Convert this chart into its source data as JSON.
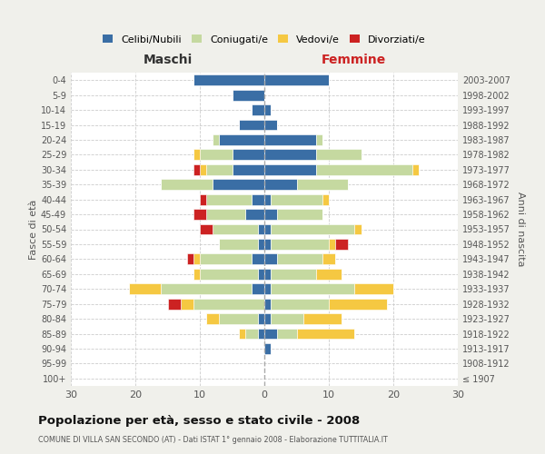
{
  "age_groups": [
    "100+",
    "95-99",
    "90-94",
    "85-89",
    "80-84",
    "75-79",
    "70-74",
    "65-69",
    "60-64",
    "55-59",
    "50-54",
    "45-49",
    "40-44",
    "35-39",
    "30-34",
    "25-29",
    "20-24",
    "15-19",
    "10-14",
    "5-9",
    "0-4"
  ],
  "birth_years": [
    "≤ 1907",
    "1908-1912",
    "1913-1917",
    "1918-1922",
    "1923-1927",
    "1928-1932",
    "1933-1937",
    "1938-1942",
    "1943-1947",
    "1948-1952",
    "1953-1957",
    "1958-1962",
    "1963-1967",
    "1968-1972",
    "1973-1977",
    "1978-1982",
    "1983-1987",
    "1988-1992",
    "1993-1997",
    "1998-2002",
    "2003-2007"
  ],
  "maschi_celibi": [
    0,
    0,
    0,
    1,
    1,
    0,
    2,
    1,
    2,
    1,
    1,
    3,
    2,
    8,
    5,
    5,
    7,
    4,
    2,
    5,
    11
  ],
  "maschi_coniugati": [
    0,
    0,
    0,
    2,
    6,
    11,
    14,
    9,
    8,
    6,
    7,
    6,
    7,
    8,
    4,
    5,
    1,
    0,
    0,
    0,
    0
  ],
  "maschi_vedovi": [
    0,
    0,
    0,
    1,
    2,
    2,
    5,
    1,
    1,
    0,
    0,
    0,
    0,
    0,
    1,
    1,
    0,
    0,
    0,
    0,
    0
  ],
  "maschi_divorziati": [
    0,
    0,
    0,
    0,
    0,
    2,
    0,
    0,
    1,
    0,
    2,
    2,
    1,
    0,
    1,
    0,
    0,
    0,
    0,
    0,
    0
  ],
  "femmine_nubili": [
    0,
    0,
    1,
    2,
    1,
    1,
    1,
    1,
    2,
    1,
    1,
    2,
    1,
    5,
    8,
    8,
    8,
    2,
    1,
    0,
    10
  ],
  "femmine_coniugate": [
    0,
    0,
    0,
    3,
    5,
    9,
    13,
    7,
    7,
    9,
    13,
    7,
    8,
    8,
    15,
    7,
    1,
    0,
    0,
    0,
    0
  ],
  "femmine_vedove": [
    0,
    0,
    0,
    9,
    6,
    9,
    6,
    4,
    2,
    1,
    1,
    0,
    1,
    0,
    1,
    0,
    0,
    0,
    0,
    0,
    0
  ],
  "femmine_divorziate": [
    0,
    0,
    0,
    0,
    0,
    0,
    0,
    0,
    0,
    2,
    0,
    0,
    0,
    0,
    0,
    0,
    0,
    0,
    0,
    0,
    0
  ],
  "color_celibi": "#3a6ea5",
  "color_coniugati": "#c5d9a0",
  "color_vedovi": "#f5c842",
  "color_divorziati": "#cc2222",
  "legend_labels": [
    "Celibi/Nubili",
    "Coniugati/e",
    "Vedovi/e",
    "Divorziati/e"
  ],
  "title": "Popolazione per età, sesso e stato civile - 2008",
  "subtitle": "COMUNE DI VILLA SAN SECONDO (AT) - Dati ISTAT 1° gennaio 2008 - Elaborazione TUTTITALIA.IT",
  "label_maschi": "Maschi",
  "label_femmine": "Femmine",
  "ylabel_left": "Fasce di età",
  "ylabel_right": "Anni di nascita",
  "xlim": 30,
  "bg_color": "#f0f0eb",
  "plot_bg_color": "#ffffff"
}
